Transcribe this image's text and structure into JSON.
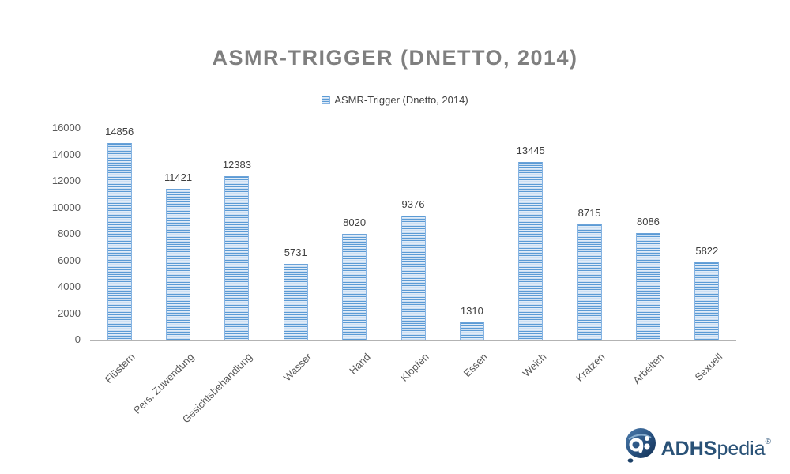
{
  "chart_data": {
    "type": "bar",
    "title": "ASMR-TRIGGER (DNETTO, 2014)",
    "legend_label": "ASMR-Trigger (Dnetto, 2014)",
    "legend_position": "top-center",
    "categories": [
      "Flüstern",
      "Pers. Zuwendung",
      "Gesichtsbehandlung",
      "Wasser",
      "Hand",
      "Klopfen",
      "Essen",
      "Weich",
      "Kratzen",
      "Arbeiten",
      "Sexuell"
    ],
    "values": [
      14856,
      11421,
      12383,
      5731,
      8020,
      9376,
      1310,
      13445,
      8715,
      8086,
      5822
    ],
    "xlabel": "",
    "ylabel": "",
    "ylim": [
      0,
      16000
    ],
    "yticks": [
      0,
      2000,
      4000,
      6000,
      8000,
      10000,
      12000,
      14000,
      16000
    ],
    "grid": false,
    "bar_color": "#5b9bd5",
    "bar_fill_pattern": "horizontal-stripes",
    "value_labels_shown": true
  },
  "branding": {
    "logo_bold": "ADHS",
    "logo_light": "pedia",
    "registered": "®",
    "logo_color": "#2a5277"
  },
  "colors": {
    "background": "#ffffff",
    "title_text": "#7f7f7f",
    "axis_text": "#595959",
    "value_label_text": "#3f3f3f",
    "axis_line": "#b3b3b3",
    "bar_stripe_dark": "#5b9bd5",
    "bar_stripe_light": "#ecf3fb"
  }
}
